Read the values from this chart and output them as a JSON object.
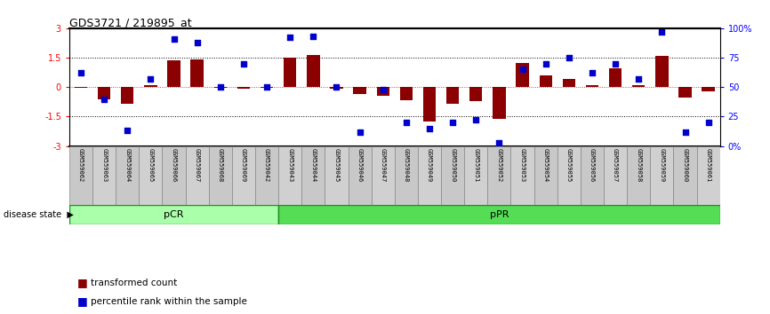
{
  "title": "GDS3721 / 219895_at",
  "samples": [
    "GSM559062",
    "GSM559063",
    "GSM559064",
    "GSM559065",
    "GSM559066",
    "GSM559067",
    "GSM559068",
    "GSM559069",
    "GSM559042",
    "GSM559043",
    "GSM559044",
    "GSM559045",
    "GSM559046",
    "GSM559047",
    "GSM559048",
    "GSM559049",
    "GSM559050",
    "GSM559051",
    "GSM559052",
    "GSM559053",
    "GSM559054",
    "GSM559055",
    "GSM559056",
    "GSM559057",
    "GSM559058",
    "GSM559059",
    "GSM559060",
    "GSM559061"
  ],
  "transformed_count": [
    -0.05,
    -0.6,
    -0.85,
    0.1,
    1.35,
    1.4,
    -0.05,
    -0.1,
    -0.05,
    1.5,
    1.65,
    -0.1,
    -0.35,
    -0.45,
    -0.65,
    -1.75,
    -0.85,
    -0.7,
    -1.6,
    1.25,
    0.6,
    0.4,
    0.1,
    0.95,
    0.1,
    1.6,
    -0.55,
    -0.2
  ],
  "percentile_rank": [
    62,
    40,
    13,
    57,
    91,
    88,
    50,
    70,
    50,
    92,
    93,
    50,
    12,
    48,
    20,
    15,
    20,
    22,
    3,
    65,
    70,
    75,
    62,
    70,
    57,
    97,
    12,
    20
  ],
  "pCR_count": 9,
  "pPR_count": 19,
  "bar_color": "#8B0000",
  "scatter_color": "#0000CD",
  "pCR_color": "#AAFFAA",
  "pPR_color": "#55DD55",
  "ylim_left": [
    -3,
    3
  ],
  "yticks_left": [
    -3,
    -1.5,
    0,
    1.5,
    3
  ],
  "yticklabels_left": [
    "-3",
    "-1.5",
    "0",
    "1.5",
    "3"
  ],
  "yticks_right": [
    0,
    25,
    50,
    75,
    100
  ],
  "yticklabels_right": [
    "0%",
    "25",
    "50",
    "75",
    "100%"
  ],
  "hlines": [
    0,
    1.5,
    -1.5
  ]
}
